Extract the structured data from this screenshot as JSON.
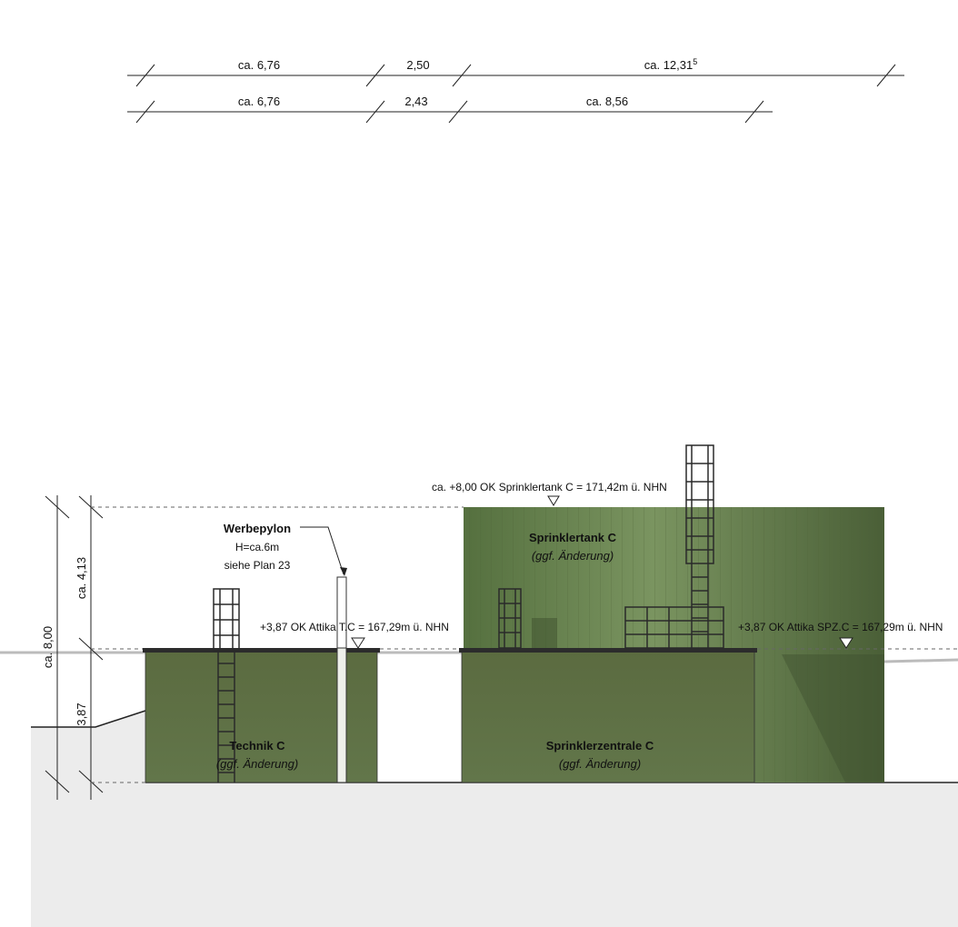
{
  "top_dimensions": {
    "row1": [
      "ca. 6,76",
      "2,50",
      "ca. 12,31"
    ],
    "row1_superscript": "5",
    "row2": [
      "ca. 6,76",
      "2,43",
      "ca. 8,56"
    ]
  },
  "vertical_dimensions": {
    "total": "ca. 8,00",
    "upper": "ca. 4,13",
    "lower": "3,87"
  },
  "levels": {
    "tank_top": "ca. +8,00 OK Sprinklertank C = 171,42m ü. NHN",
    "attika_tc": "+3,87 OK Attika T.C = 167,29m ü. NHN",
    "attika_spz": "+3,87 OK Attika SPZ.C = 167,29m ü. NHN"
  },
  "pylon": {
    "title": "Werbepylon",
    "height": "H=ca.6m",
    "reference": "siehe Plan 23"
  },
  "buildings": {
    "tank": {
      "name": "Sprinklertank C",
      "note": "(ggf. Änderung)"
    },
    "technik": {
      "name": "Technik C",
      "note": "(ggf. Änderung)"
    },
    "zentrale": {
      "name": "Sprinklerzentrale C",
      "note": "(ggf. Änderung)"
    }
  },
  "colors": {
    "building_green": "#5c6e42",
    "tank_green": "#6b8350",
    "ground": "#ececec",
    "roof_dark": "#2c2c2c"
  }
}
